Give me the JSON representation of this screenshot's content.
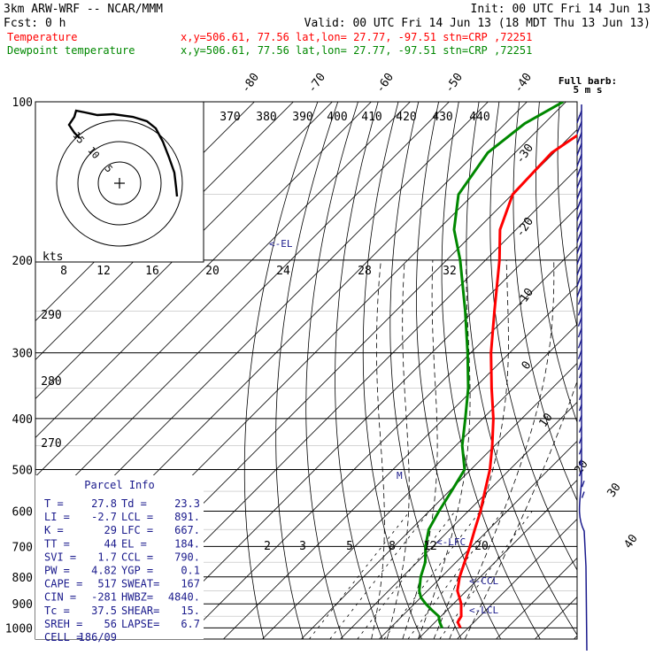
{
  "header": {
    "model": "3km ARW-WRF -- NCAR/MMM",
    "init": "Init: 00 UTC Fri 14 Jun 13",
    "fcst": "Fcst:     0 h",
    "valid": "Valid: 00 UTC Fri 14 Jun 13 (18 MDT Thu 13 Jun 13)",
    "temp_label": "Temperature",
    "dew_label": "Dewpoint temperature",
    "location": "x,y=506.61, 77.56    lat,lon= 27.77, -97.51   stn=CRP ,72251"
  },
  "colors": {
    "temperature": "#ff0000",
    "dewpoint": "#008800",
    "wind": "#1a1a8c",
    "grid": "#000000"
  },
  "chart_data": {
    "type": "line",
    "title": "",
    "pressure_ticks": [
      100,
      200,
      300,
      400,
      500,
      600,
      700,
      800,
      900,
      1000
    ],
    "temperature_ticks": [
      -80,
      -70,
      -60,
      -50,
      -40,
      -30,
      -20,
      -10,
      0,
      10,
      20,
      30,
      40
    ],
    "theta_labels": [
      370,
      380,
      390,
      400,
      410,
      420,
      430,
      440
    ],
    "mixing_ratio_labels": [
      2,
      3,
      5,
      8,
      12,
      20
    ],
    "dry_adiabat_labels_left": [
      290,
      280,
      270
    ],
    "series": [
      {
        "name": "Temperature",
        "color": "#ff0000",
        "p": [
          1000,
          975,
          950,
          925,
          900,
          875,
          850,
          800,
          750,
          700,
          650,
          600,
          550,
          500,
          450,
          400,
          350,
          300,
          250,
          200,
          175,
          150,
          125,
          110,
          100
        ],
        "t": [
          28.0,
          25.8,
          25.2,
          23.6,
          22.0,
          19.9,
          17.7,
          14.7,
          12.2,
          9.5,
          6.4,
          3.2,
          -0.8,
          -5.1,
          -10.7,
          -17.3,
          -25.6,
          -34.8,
          -44.6,
          -56.4,
          -64.1,
          -69.9,
          -70.6,
          -67.0,
          -62.8
        ]
      },
      {
        "name": "Dewpoint temperature",
        "color": "#008800",
        "p": [
          1000,
          975,
          950,
          925,
          900,
          875,
          850,
          800,
          750,
          700,
          650,
          600,
          550,
          500,
          450,
          400,
          350,
          300,
          250,
          200,
          175,
          150,
          125,
          110,
          100
        ],
        "t": [
          23.3,
          21.2,
          19.4,
          16.1,
          12.9,
          10.0,
          7.9,
          4.7,
          2.1,
          -1.9,
          -5.4,
          -7.5,
          -9.4,
          -11.6,
          -18.4,
          -24.5,
          -31.6,
          -40.8,
          -52.1,
          -66.5,
          -75.9,
          -83.8,
          -87.0,
          -85.0,
          -80.7
        ]
      }
    ],
    "annotations": [
      {
        "text": "<-EL",
        "p": 184
      },
      {
        "text": "<-LFC",
        "p": 667
      },
      {
        "text": "<-CCL",
        "p": 790
      },
      {
        "text": "<-LCL",
        "p": 891
      }
    ],
    "hodograph": {
      "units": "kts",
      "ring_labels": [
        "5",
        "10",
        "15"
      ]
    },
    "hodo_axis": {
      "label": "kts",
      "ticks": [
        8,
        12,
        16,
        20,
        24,
        28,
        32
      ]
    },
    "wind_barb_label": "Full barb:\n5 m s",
    "wind_barbs_count": 36
  },
  "parcel_info": {
    "title": "Parcel Info",
    "rows": [
      [
        "T  =",
        "27.8",
        "Td =",
        "23.3"
      ],
      [
        "LI =",
        "-2.7",
        "LCL =",
        "891."
      ],
      [
        "K  =",
        "29",
        "LFC =",
        "667."
      ],
      [
        "TT =",
        "44",
        "EL =",
        "184."
      ],
      [
        "SVI =",
        "1.7",
        "CCL =",
        "790."
      ],
      [
        "PW =",
        "4.82",
        "YGP =",
        "0.1"
      ],
      [
        "CAPE =",
        "517",
        "SWEAT=",
        "167"
      ],
      [
        "CIN =",
        "-281",
        "HWBZ=",
        "4840."
      ],
      [
        "Tc =",
        "37.5",
        "SHEAR=",
        "15."
      ],
      [
        "SREH =",
        "56",
        "LAPSE=",
        "6.7"
      ],
      [
        "CELL =",
        "186/09",
        "",
        ""
      ]
    ]
  }
}
